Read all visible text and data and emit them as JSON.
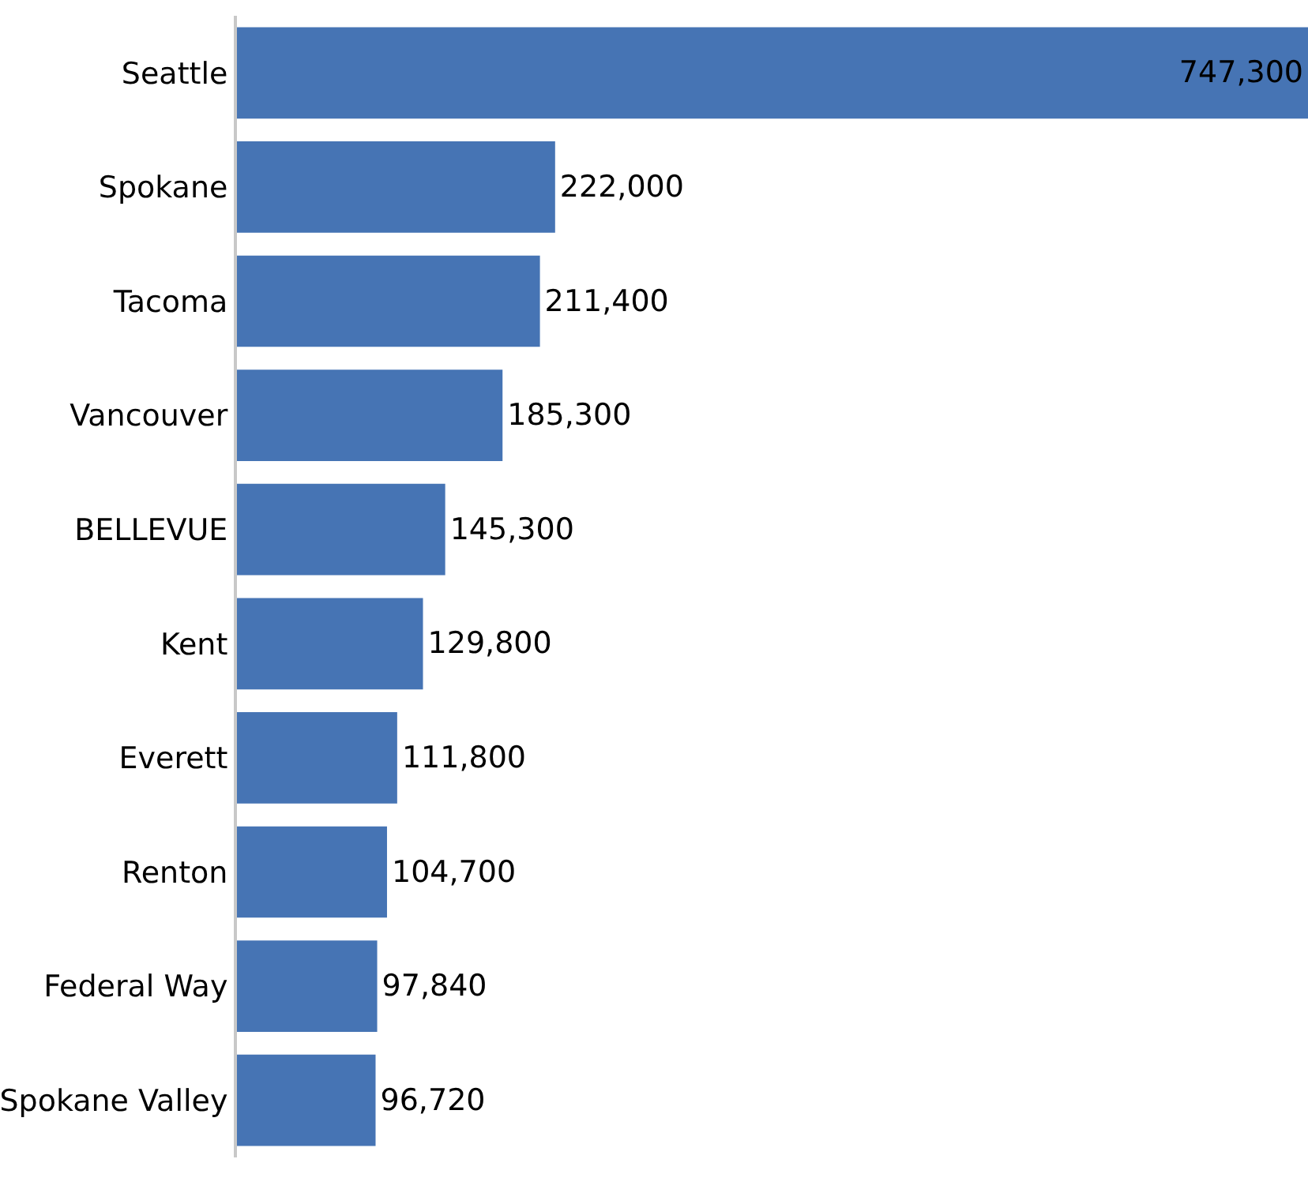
{
  "chart_data": {
    "type": "bar",
    "orientation": "horizontal",
    "categories": [
      "Seattle",
      "Spokane",
      "Tacoma",
      "Vancouver",
      "BELLEVUE",
      "Kent",
      "Everett",
      "Renton",
      "Federal Way",
      "Spokane Valley"
    ],
    "values": [
      747300,
      222000,
      211400,
      185300,
      145300,
      129800,
      111800,
      104700,
      97840,
      96720
    ],
    "value_labels": [
      "747,300",
      "222,000",
      "211,400",
      "185,300",
      "145,300",
      "129,800",
      "111,800",
      "104,700",
      "97,840",
      "96,720"
    ],
    "color": "#4674b4"
  }
}
